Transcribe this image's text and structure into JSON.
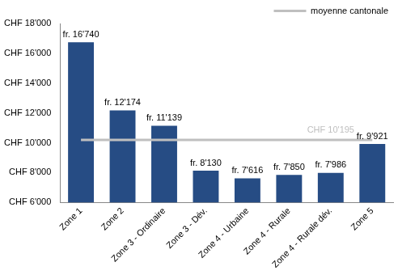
{
  "chart_data": {
    "type": "bar",
    "categories": [
      "Zone 1",
      "Zone 2",
      "Zone 3 - Ordinaire",
      "Zone 3 - Dév.",
      "Zone 4 - Urbaine",
      "Zone 4 - Rurale",
      "Zone 4 - Rurale dév.",
      "Zone 5"
    ],
    "values": [
      16740,
      12174,
      11139,
      8130,
      7616,
      7850,
      7986,
      9921
    ],
    "value_labels": [
      "fr. 16'740",
      "fr. 12'174",
      "fr. 11'139",
      "fr. 8'130",
      "fr. 7'616",
      "fr. 7'850",
      "fr. 7'986",
      "fr. 9'921"
    ],
    "color": "#264c84",
    "data_labels": true,
    "ylim": [
      6000,
      18000
    ],
    "yticks": [
      {
        "value": 6000,
        "label": "CHF 6'000"
      },
      {
        "value": 8000,
        "label": "CHF 8'000"
      },
      {
        "value": 10000,
        "label": "CHF 10'000"
      },
      {
        "value": 12000,
        "label": "CHF 12'000"
      },
      {
        "value": 14000,
        "label": "CHF 14'000"
      },
      {
        "value": 16000,
        "label": "CHF 16'000"
      },
      {
        "value": 18000,
        "label": "CHF 18'000"
      }
    ],
    "grid": false,
    "legend": "upper right",
    "reference_line": {
      "name": "moyenne cantonale",
      "value": 10195,
      "label": "CHF 10'195",
      "color": "#bfbfbf"
    }
  }
}
